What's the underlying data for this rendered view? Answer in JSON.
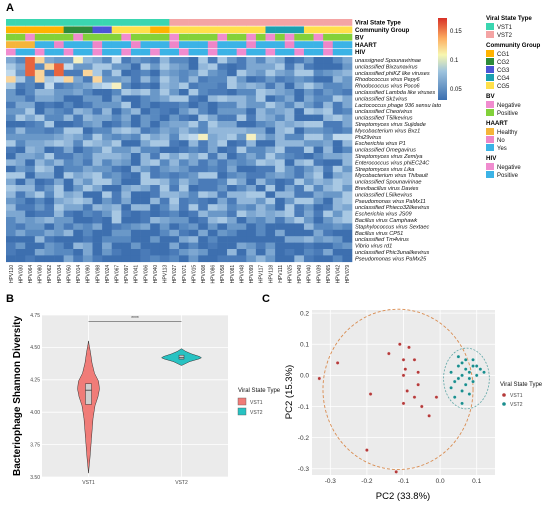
{
  "panels": {
    "a": "A",
    "b": "B",
    "c": "C"
  },
  "heatmap": {
    "annotation_labels": [
      "Viral State Type",
      "Community Group",
      "BV",
      "HAART",
      "HIV"
    ],
    "rows": [
      "unassigned Spounavirinae",
      "unclassified Bixzunavirus",
      "unclassified phiKZ like viruses",
      "Rhodococcus virus Pepy6",
      "Rhodococcus virus Poco6",
      "unclassified Lambda like viruses",
      "unclassified Sk1virus",
      "Lactococcus phage 936 sensu lato",
      "unclassified Cheoivirus",
      "unclassified T5likevirus",
      "Streptomyces virus Sujidade",
      "Mycobacterium virus Bxz1",
      "Phi29virus",
      "Escherichia virus P1",
      "unclassified Omegavirus",
      "Streptomyces virus Zemlya",
      "Enterococcus virus phiEC24C",
      "Streptomyces virus Lika",
      "Mycobacterium virus Thibault",
      "unclassified Spounavirinae",
      "Brevibacillus virus Davies",
      "unclassified L5likevirus",
      "Pseudomonas virus PaMx11",
      "unclassified Phieco32likevirus",
      "Escherichia virus JS09",
      "Bacillus virus Camphawk",
      "Staphylococcus virus Sextaec",
      "Bacillus virus CP51",
      "unclassified Tm4virus",
      "Vibrio virus rd1",
      "unclassified Phic3unalikevirus",
      "Pseudomonas virus PaMx25"
    ],
    "columns": [
      "HPV110",
      "HPV030",
      "HPV064",
      "HPV080",
      "HPV062",
      "HPV034",
      "HPV050",
      "HPV014",
      "HPV090",
      "HPV098",
      "HPV024",
      "HPV067",
      "HPV097",
      "HPV041",
      "HPV006",
      "HPV040",
      "HPV113",
      "HPV027",
      "HPV071",
      "HPV015",
      "HPV008",
      "HPV086",
      "HPV058",
      "HPV081",
      "HPV048",
      "HPV099",
      "HPV117",
      "HPV118",
      "HPV111",
      "HPV025",
      "HPV049",
      "HPV040",
      "HPV039",
      "HPV065",
      "HPV042",
      "HPV079"
    ],
    "color_scale": {
      "ticks": [
        "0.15",
        "0.1",
        "0.05"
      ],
      "low": "#3b6fb0",
      "mid": "#f7f7b0",
      "high": "#d73027"
    }
  },
  "legends": [
    {
      "title": "Viral State Type",
      "items": [
        {
          "label": "VST1",
          "color": "#3ad6b0"
        },
        {
          "label": "VST2",
          "color": "#f4a4a4"
        }
      ]
    },
    {
      "title": "Community Group",
      "items": [
        {
          "label": "CG1",
          "color": "#ffb300"
        },
        {
          "label": "CG2",
          "color": "#2e8b3a"
        },
        {
          "label": "CG3",
          "color": "#4b55d6"
        },
        {
          "label": "CG4",
          "color": "#1aa0b0"
        },
        {
          "label": "CG5",
          "color": "#ffe04a"
        }
      ]
    },
    {
      "title": "BV",
      "items": [
        {
          "label": "Negative",
          "color": "#f08ccf"
        },
        {
          "label": "Positive",
          "color": "#82d13a"
        }
      ]
    },
    {
      "title": "HAART",
      "items": [
        {
          "label": "Healthy",
          "color": "#f5b53a"
        },
        {
          "label": "No",
          "color": "#ee86c8"
        },
        {
          "label": "Yes",
          "color": "#3bb3e6"
        }
      ]
    },
    {
      "title": "HIV",
      "items": [
        {
          "label": "Negative",
          "color": "#f08ccf"
        },
        {
          "label": "Positive",
          "color": "#3bb3e6"
        }
      ]
    }
  ],
  "chart_data": [
    {
      "type": "violin",
      "ylabel": "Bacteriophage Shannon Diversity",
      "ylim": [
        3.5,
        4.75
      ],
      "yticks": [
        "3.50",
        "3.75",
        "4.00",
        "4.25",
        "4.50",
        "4.75"
      ],
      "categories": [
        "VST1",
        "VST2"
      ],
      "colors": [
        "#f07c78",
        "#27c2c2"
      ],
      "medians": [
        4.17,
        4.42
      ],
      "q1": [
        4.06,
        4.41
      ],
      "q3": [
        4.22,
        4.44
      ],
      "significance": "****",
      "legend_title": "Viral State Type",
      "legend": [
        "VST1",
        "VST2"
      ]
    },
    {
      "type": "scatter",
      "xlabel": "PC2 (33.8%)",
      "ylabel": "PC2 (15.3%)",
      "xlim": [
        -0.35,
        0.15
      ],
      "ylim": [
        -0.32,
        0.21
      ],
      "xticks": [
        "-0.3",
        "-0.2",
        "-0.1",
        "0.0",
        "0.1"
      ],
      "yticks": [
        "0.2",
        "0.1",
        "0.0",
        "-0.1",
        "-0.2",
        "-0.3"
      ],
      "legend_title": "Viral State Type",
      "series": [
        {
          "name": "VST1",
          "color": "#b53a3a",
          "x": [
            -0.33,
            -0.28,
            -0.19,
            -0.14,
            -0.11,
            -0.1,
            -0.095,
            -0.09,
            -0.085,
            -0.07,
            -0.06,
            -0.05,
            -0.03,
            -0.01,
            -0.2,
            -0.12,
            -0.07,
            -0.06,
            -0.1,
            -0.1
          ],
          "y": [
            -0.01,
            0.04,
            -0.06,
            0.07,
            0.1,
            0.05,
            0.02,
            -0.05,
            0.09,
            0.05,
            -0.03,
            -0.1,
            -0.13,
            -0.07,
            -0.24,
            -0.31,
            -0.07,
            0.01,
            -0.09,
            0.0
          ]
        },
        {
          "name": "VST2",
          "color": "#1a8e8e",
          "x": [
            0.03,
            0.04,
            0.05,
            0.05,
            0.06,
            0.06,
            0.07,
            0.07,
            0.08,
            0.08,
            0.09,
            0.09,
            0.1,
            0.11,
            0.04,
            0.06,
            0.08,
            0.12,
            0.05,
            0.07,
            0.09,
            0.1,
            0.03,
            0.06
          ],
          "y": [
            0.01,
            -0.02,
            0.03,
            -0.01,
            0.04,
            0.0,
            0.02,
            -0.03,
            0.01,
            -0.01,
            0.03,
            -0.02,
            0.0,
            0.02,
            -0.07,
            -0.05,
            -0.06,
            0.01,
            0.06,
            0.05,
            0.05,
            0.03,
            -0.04,
            -0.09
          ]
        }
      ]
    }
  ]
}
